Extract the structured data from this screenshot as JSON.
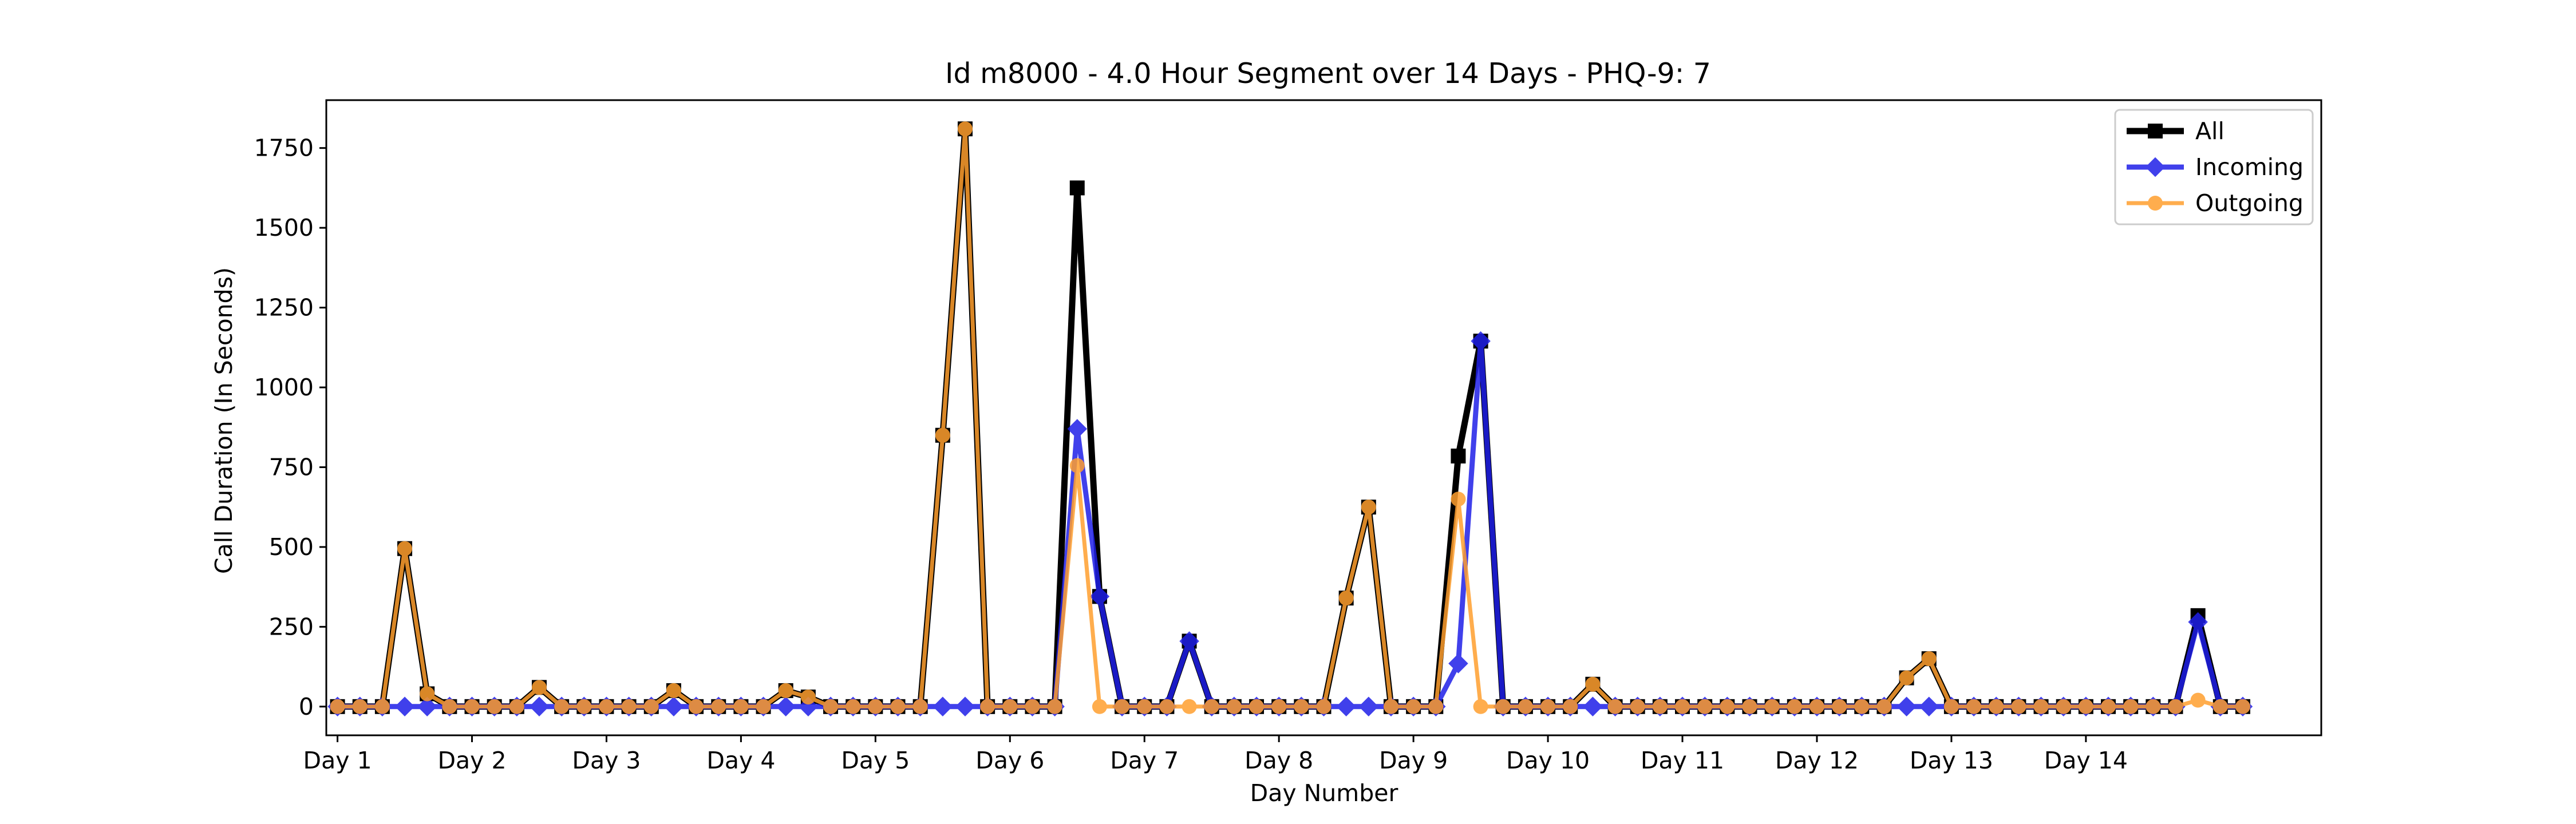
{
  "chart_data": {
    "type": "line",
    "title": "Id m8000 - 4.0 Hour Segment over 14 Days - PHQ-9: 7",
    "xlabel": "Day Number",
    "ylabel": "Call Duration (In Seconds)",
    "xlim": [
      -0.5,
      88.5
    ],
    "ylim": [
      -90,
      1900
    ],
    "yticks": [
      0,
      250,
      500,
      750,
      1000,
      1250,
      1500,
      1750
    ],
    "xtick_labels": [
      "Day 1",
      "Day 2",
      "Day 3",
      "Day 4",
      "Day 5",
      "Day 6",
      "Day 7",
      "Day 8",
      "Day 9",
      "Day 10",
      "Day 11",
      "Day 12",
      "Day 13",
      "Day 14"
    ],
    "xtick_positions": [
      0,
      6,
      12,
      18,
      24,
      30,
      36,
      42,
      48,
      54,
      60,
      66,
      72,
      78
    ],
    "legend_position": "top-right",
    "grid": false,
    "series": [
      {
        "name": "All",
        "color": "#000000",
        "marker": "square",
        "values": [
          0,
          0,
          0,
          495,
          40,
          0,
          0,
          0,
          0,
          60,
          0,
          0,
          0,
          0,
          0,
          50,
          0,
          0,
          0,
          0,
          50,
          30,
          0,
          0,
          0,
          0,
          0,
          850,
          1810,
          0,
          0,
          0,
          0,
          1625,
          345,
          0,
          0,
          0,
          205,
          0,
          0,
          0,
          0,
          0,
          0,
          340,
          625,
          0,
          0,
          0,
          785,
          1145,
          0,
          0,
          0,
          0,
          70,
          0,
          0,
          0,
          0,
          0,
          0,
          0,
          0,
          0,
          0,
          0,
          0,
          0,
          90,
          150,
          0,
          0,
          0,
          0,
          0,
          0,
          0,
          0,
          0,
          0,
          0,
          285,
          0,
          0
        ]
      },
      {
        "name": "Incoming",
        "color": "#1f1fe8",
        "marker": "diamond",
        "values": [
          0,
          0,
          0,
          0,
          0,
          0,
          0,
          0,
          0,
          0,
          0,
          0,
          0,
          0,
          0,
          0,
          0,
          0,
          0,
          0,
          0,
          0,
          0,
          0,
          0,
          0,
          0,
          0,
          0,
          0,
          0,
          0,
          0,
          870,
          345,
          0,
          0,
          0,
          205,
          0,
          0,
          0,
          0,
          0,
          0,
          0,
          0,
          0,
          0,
          0,
          135,
          1145,
          0,
          0,
          0,
          0,
          0,
          0,
          0,
          0,
          0,
          0,
          0,
          0,
          0,
          0,
          0,
          0,
          0,
          0,
          0,
          0,
          0,
          0,
          0,
          0,
          0,
          0,
          0,
          0,
          0,
          0,
          0,
          265,
          0,
          0
        ]
      },
      {
        "name": "Outgoing",
        "color": "#ff9f2e",
        "marker": "circle",
        "values": [
          0,
          0,
          0,
          495,
          40,
          0,
          0,
          0,
          0,
          60,
          0,
          0,
          0,
          0,
          0,
          50,
          0,
          0,
          0,
          0,
          50,
          30,
          0,
          0,
          0,
          0,
          0,
          850,
          1810,
          0,
          0,
          0,
          0,
          755,
          0,
          0,
          0,
          0,
          0,
          0,
          0,
          0,
          0,
          0,
          0,
          340,
          625,
          0,
          0,
          0,
          650,
          0,
          0,
          0,
          0,
          0,
          70,
          0,
          0,
          0,
          0,
          0,
          0,
          0,
          0,
          0,
          0,
          0,
          0,
          0,
          90,
          150,
          0,
          0,
          0,
          0,
          0,
          0,
          0,
          0,
          0,
          0,
          0,
          20,
          0,
          0
        ]
      }
    ]
  }
}
